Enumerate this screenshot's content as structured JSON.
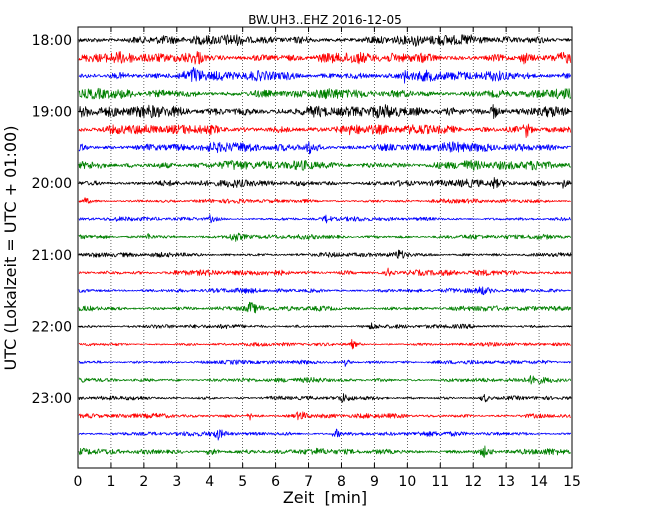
{
  "chart_data": {
    "type": "line",
    "title": "BW.UH3..EHZ 2016-12-05",
    "xlabel": "Zeit  [min]",
    "ylabel": "UTC (Lokalzeit = UTC + 01:00)",
    "xlim": [
      0,
      15
    ],
    "xticks": [
      0,
      1,
      2,
      3,
      4,
      5,
      6,
      7,
      8,
      9,
      10,
      11,
      12,
      13,
      14,
      15
    ],
    "y_time_start": "18:00",
    "y_time_end": "23:45",
    "row_interval_min": 15,
    "yticks": [
      "18:00",
      "19:00",
      "20:00",
      "21:00",
      "22:00",
      "23:00"
    ],
    "vertical_grid": "dotted",
    "trace_colors": [
      "#000000",
      "#ff0000",
      "#0000ff",
      "#008000"
    ],
    "series": [
      {
        "start": "18:00",
        "color": "#000000",
        "amplitude": 0.85
      },
      {
        "start": "18:15",
        "color": "#ff0000",
        "amplitude": 0.9
      },
      {
        "start": "18:30",
        "color": "#0000ff",
        "amplitude": 0.85
      },
      {
        "start": "18:45",
        "color": "#008000",
        "amplitude": 0.8
      },
      {
        "start": "19:00",
        "color": "#000000",
        "amplitude": 1.0
      },
      {
        "start": "19:15",
        "color": "#ff0000",
        "amplitude": 0.85
      },
      {
        "start": "19:30",
        "color": "#0000ff",
        "amplitude": 0.8
      },
      {
        "start": "19:45",
        "color": "#008000",
        "amplitude": 0.8
      },
      {
        "start": "20:00",
        "color": "#000000",
        "amplitude": 0.6
      },
      {
        "start": "20:15",
        "color": "#ff0000",
        "amplitude": 0.35
      },
      {
        "start": "20:30",
        "color": "#0000ff",
        "amplitude": 0.35
      },
      {
        "start": "20:45",
        "color": "#008000",
        "amplitude": 0.4
      },
      {
        "start": "21:00",
        "color": "#000000",
        "amplitude": 0.4
      },
      {
        "start": "21:15",
        "color": "#ff0000",
        "amplitude": 0.5
      },
      {
        "start": "21:30",
        "color": "#0000ff",
        "amplitude": 0.4
      },
      {
        "start": "21:45",
        "color": "#008000",
        "amplitude": 0.45
      },
      {
        "start": "22:00",
        "color": "#000000",
        "amplitude": 0.35
      },
      {
        "start": "22:15",
        "color": "#ff0000",
        "amplitude": 0.3
      },
      {
        "start": "22:30",
        "color": "#0000ff",
        "amplitude": 0.35
      },
      {
        "start": "22:45",
        "color": "#008000",
        "amplitude": 0.4
      },
      {
        "start": "23:00",
        "color": "#000000",
        "amplitude": 0.35
      },
      {
        "start": "23:15",
        "color": "#ff0000",
        "amplitude": 0.4
      },
      {
        "start": "23:30",
        "color": "#0000ff",
        "amplitude": 0.4
      },
      {
        "start": "23:45",
        "color": "#008000",
        "amplitude": 0.5
      }
    ],
    "events": [
      {
        "trace": "18:00",
        "minute": 10.2,
        "strength": 1.4
      },
      {
        "trace": "18:15",
        "minute": 3.6,
        "strength": 1.2
      },
      {
        "trace": "18:15",
        "minute": 13.5,
        "strength": 1.0
      },
      {
        "trace": "18:30",
        "minute": 3.5,
        "strength": 1.1
      },
      {
        "trace": "18:30",
        "minute": 9.9,
        "strength": 1.0
      },
      {
        "trace": "19:00",
        "minute": 12.6,
        "strength": 1.3
      },
      {
        "trace": "19:15",
        "minute": 13.6,
        "strength": 1.5
      },
      {
        "trace": "19:30",
        "minute": 7.0,
        "strength": 1.1
      },
      {
        "trace": "20:00",
        "minute": 14.7,
        "strength": 1.5
      },
      {
        "trace": "20:00",
        "minute": 12.6,
        "strength": 1.4
      },
      {
        "trace": "20:15",
        "minute": 0.2,
        "strength": 1.8
      },
      {
        "trace": "20:30",
        "minute": 7.5,
        "strength": 2.2
      },
      {
        "trace": "20:30",
        "minute": 4.0,
        "strength": 1.6
      },
      {
        "trace": "20:45",
        "minute": 4.7,
        "strength": 2.0
      },
      {
        "trace": "20:45",
        "minute": 2.1,
        "strength": 1.6
      },
      {
        "trace": "21:00",
        "minute": 9.7,
        "strength": 2.0
      },
      {
        "trace": "21:15",
        "minute": 9.4,
        "strength": 1.6
      },
      {
        "trace": "21:30",
        "minute": 12.2,
        "strength": 1.8
      },
      {
        "trace": "21:45",
        "minute": 5.2,
        "strength": 2.0
      },
      {
        "trace": "22:00",
        "minute": 8.9,
        "strength": 1.8
      },
      {
        "trace": "22:15",
        "minute": 8.3,
        "strength": 2.4
      },
      {
        "trace": "22:30",
        "minute": 8.1,
        "strength": 2.0
      },
      {
        "trace": "22:45",
        "minute": 13.8,
        "strength": 3.2
      },
      {
        "trace": "23:00",
        "minute": 12.3,
        "strength": 2.6
      },
      {
        "trace": "23:00",
        "minute": 8.0,
        "strength": 2.0
      },
      {
        "trace": "23:15",
        "minute": 6.7,
        "strength": 2.6
      },
      {
        "trace": "23:15",
        "minute": 5.2,
        "strength": 1.8
      },
      {
        "trace": "23:30",
        "minute": 4.2,
        "strength": 2.2
      },
      {
        "trace": "23:30",
        "minute": 7.8,
        "strength": 2.6
      },
      {
        "trace": "23:45",
        "minute": 4.0,
        "strength": 2.0
      },
      {
        "trace": "23:45",
        "minute": 12.3,
        "strength": 1.8
      }
    ]
  }
}
